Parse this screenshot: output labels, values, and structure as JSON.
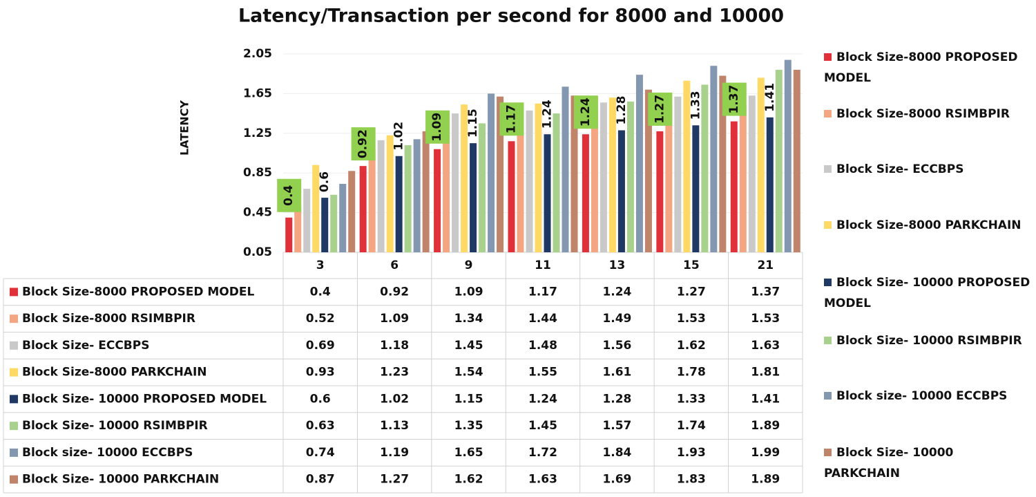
{
  "chart_data": {
    "type": "bar",
    "title": "Latency/Transaction per second for 8000 and 10000",
    "y_label": "LATENCY",
    "categories": [
      "3",
      "6",
      "9",
      "11",
      "13",
      "15",
      "21"
    ],
    "ylim": [
      0.05,
      2.05
    ],
    "yticks": [
      0.05,
      0.45,
      0.85,
      1.25,
      1.65,
      2.05
    ],
    "grid": true,
    "label_box_color": "#92d050",
    "series": [
      {
        "name": "Block Size-8000 PROPOSED MODEL",
        "color": "#e0313b",
        "values": [
          0.4,
          0.92,
          1.09,
          1.17,
          1.24,
          1.27,
          1.37
        ]
      },
      {
        "name": "Block Size-8000 RSIMBPIR",
        "color": "#f4a582",
        "values": [
          0.52,
          1.09,
          1.34,
          1.44,
          1.49,
          1.53,
          1.53
        ]
      },
      {
        "name": "Block Size- ECCBPS",
        "color": "#c9c9c9",
        "values": [
          0.69,
          1.18,
          1.45,
          1.48,
          1.56,
          1.62,
          1.63
        ]
      },
      {
        "name": "Block Size-8000 PARKCHAIN",
        "color": "#ffd966",
        "values": [
          0.93,
          1.23,
          1.54,
          1.55,
          1.61,
          1.78,
          1.81
        ]
      },
      {
        "name": "Block Size- 10000 PROPOSED MODEL",
        "color": "#1f3864",
        "values": [
          0.6,
          1.02,
          1.15,
          1.24,
          1.28,
          1.33,
          1.41
        ]
      },
      {
        "name": "Block Size- 10000 RSIMBPIR",
        "color": "#a9d18e",
        "values": [
          0.63,
          1.13,
          1.35,
          1.45,
          1.57,
          1.74,
          1.89
        ]
      },
      {
        "name": "Block size- 10000 ECCBPS",
        "color": "#8497b0",
        "values": [
          0.74,
          1.19,
          1.65,
          1.72,
          1.84,
          1.93,
          1.99
        ]
      },
      {
        "name": "Block Size- 10000 PARKCHAIN",
        "color": "#c0846a",
        "values": [
          0.87,
          1.27,
          1.62,
          1.63,
          1.69,
          1.83,
          1.89
        ]
      }
    ]
  }
}
